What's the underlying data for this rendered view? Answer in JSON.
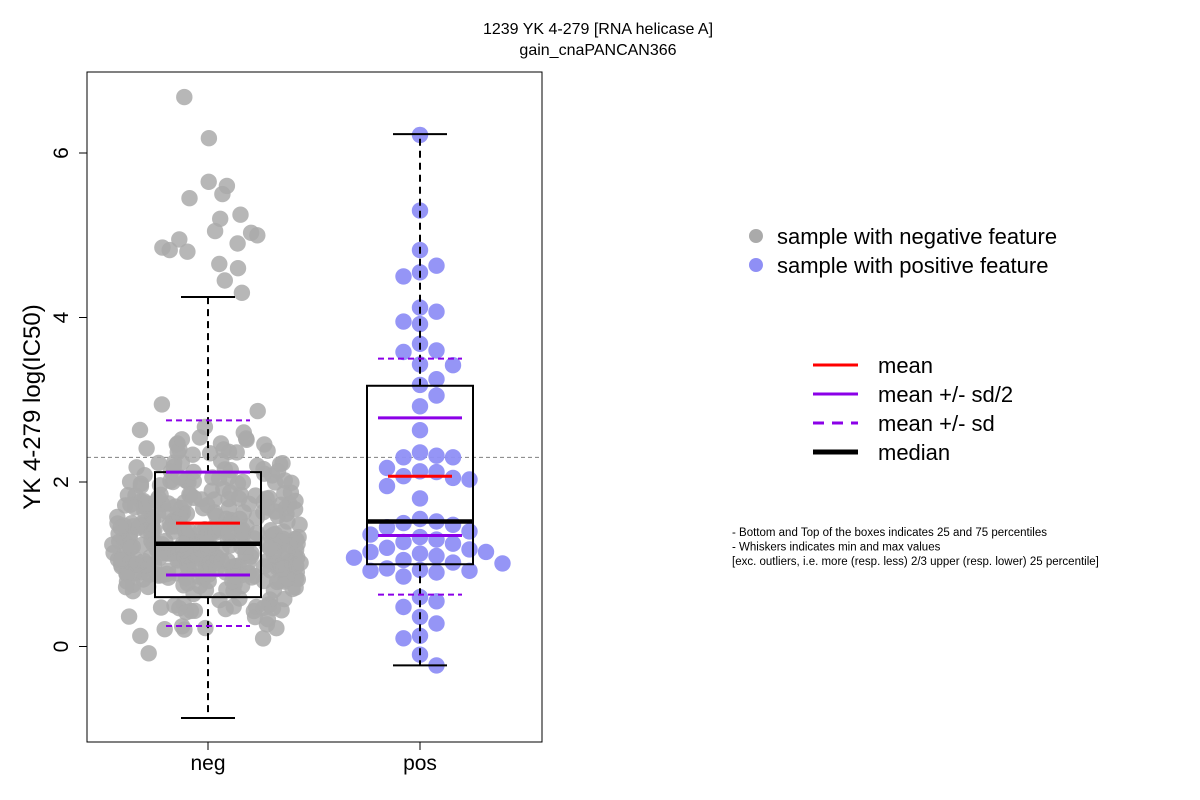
{
  "chart_data": {
    "type": "box",
    "title": "1239 YK 4-279 [RNA helicase A]",
    "subtitle": "gain_cnaPANCAN366",
    "xlabel": "",
    "ylabel": "YK 4-279 log(IC50)",
    "categories": [
      "neg",
      "pos"
    ],
    "ylim": [
      -1.2,
      6.9
    ],
    "yticks": [
      "0",
      "2",
      "4",
      "6"
    ],
    "reference_line": 2.3,
    "colors": {
      "neg_points": "#aaaaaa",
      "pos_points": "#8f8ff5",
      "mean": "#ff0000",
      "mean_sd": "#8b00e8",
      "median": "#000000",
      "reference": "#808080"
    },
    "groups": [
      {
        "name": "neg",
        "q1": 0.6,
        "median": 1.25,
        "q3": 2.12,
        "whisker_low": -0.87,
        "whisker_high": 4.25,
        "mean": 1.5,
        "mean_minus_half_sd": 0.87,
        "mean_plus_half_sd": 2.12,
        "mean_minus_sd": 0.25,
        "mean_plus_sd": 2.75,
        "count": 400,
        "outliers": [
          4.3,
          4.45,
          4.6,
          4.65,
          4.8,
          4.82,
          4.85,
          4.9,
          4.95,
          5.0,
          5.03,
          5.05,
          5.2,
          5.25,
          5.45,
          5.5,
          5.6,
          5.65,
          6.18,
          6.68
        ]
      },
      {
        "name": "pos",
        "q1": 1.0,
        "median": 1.52,
        "q3": 3.17,
        "whisker_low": -0.23,
        "whisker_high": 6.23,
        "mean": 2.07,
        "mean_minus_half_sd": 1.35,
        "mean_plus_half_sd": 2.78,
        "mean_minus_sd": 0.63,
        "mean_plus_sd": 3.5,
        "values": [
          6.22,
          5.3,
          4.82,
          4.63,
          4.55,
          4.5,
          4.12,
          4.07,
          3.95,
          3.92,
          3.68,
          3.6,
          3.58,
          3.43,
          3.42,
          3.25,
          3.18,
          3.05,
          2.92,
          2.63,
          2.36,
          2.32,
          2.3,
          2.3,
          2.17,
          2.13,
          2.12,
          2.07,
          2.05,
          2.03,
          1.95,
          1.8,
          1.55,
          1.52,
          1.5,
          1.48,
          1.45,
          1.4,
          1.36,
          1.33,
          1.3,
          1.27,
          1.25,
          1.2,
          1.18,
          1.15,
          1.15,
          1.13,
          1.1,
          1.08,
          1.05,
          1.02,
          1.01,
          0.95,
          0.93,
          0.92,
          0.92,
          0.9,
          0.85,
          0.6,
          0.55,
          0.48,
          0.36,
          0.28,
          0.13,
          0.1,
          -0.1,
          -0.23
        ]
      }
    ],
    "legend": {
      "position": "right",
      "points": [
        {
          "label": "sample with negative feature",
          "color": "#aaaaaa"
        },
        {
          "label": "sample with positive feature",
          "color": "#8f8ff5"
        }
      ],
      "lines": [
        {
          "label": "mean",
          "color": "#ff0000",
          "dashed": false,
          "thick": false
        },
        {
          "label": "mean +/- sd/2",
          "color": "#8b00e8",
          "dashed": false,
          "thick": false
        },
        {
          "label": "mean +/- sd",
          "color": "#8b00e8",
          "dashed": true,
          "thick": false
        },
        {
          "label": "median",
          "color": "#000000",
          "dashed": false,
          "thick": true
        }
      ]
    },
    "notes": [
      "- Bottom and Top of the boxes indicates 25 and 75 percentiles",
      "- Whiskers indicates min and max values",
      "[exc. outliers, i.e. more (resp. less) 2/3 upper (resp. lower) 25 percentile]"
    ]
  }
}
